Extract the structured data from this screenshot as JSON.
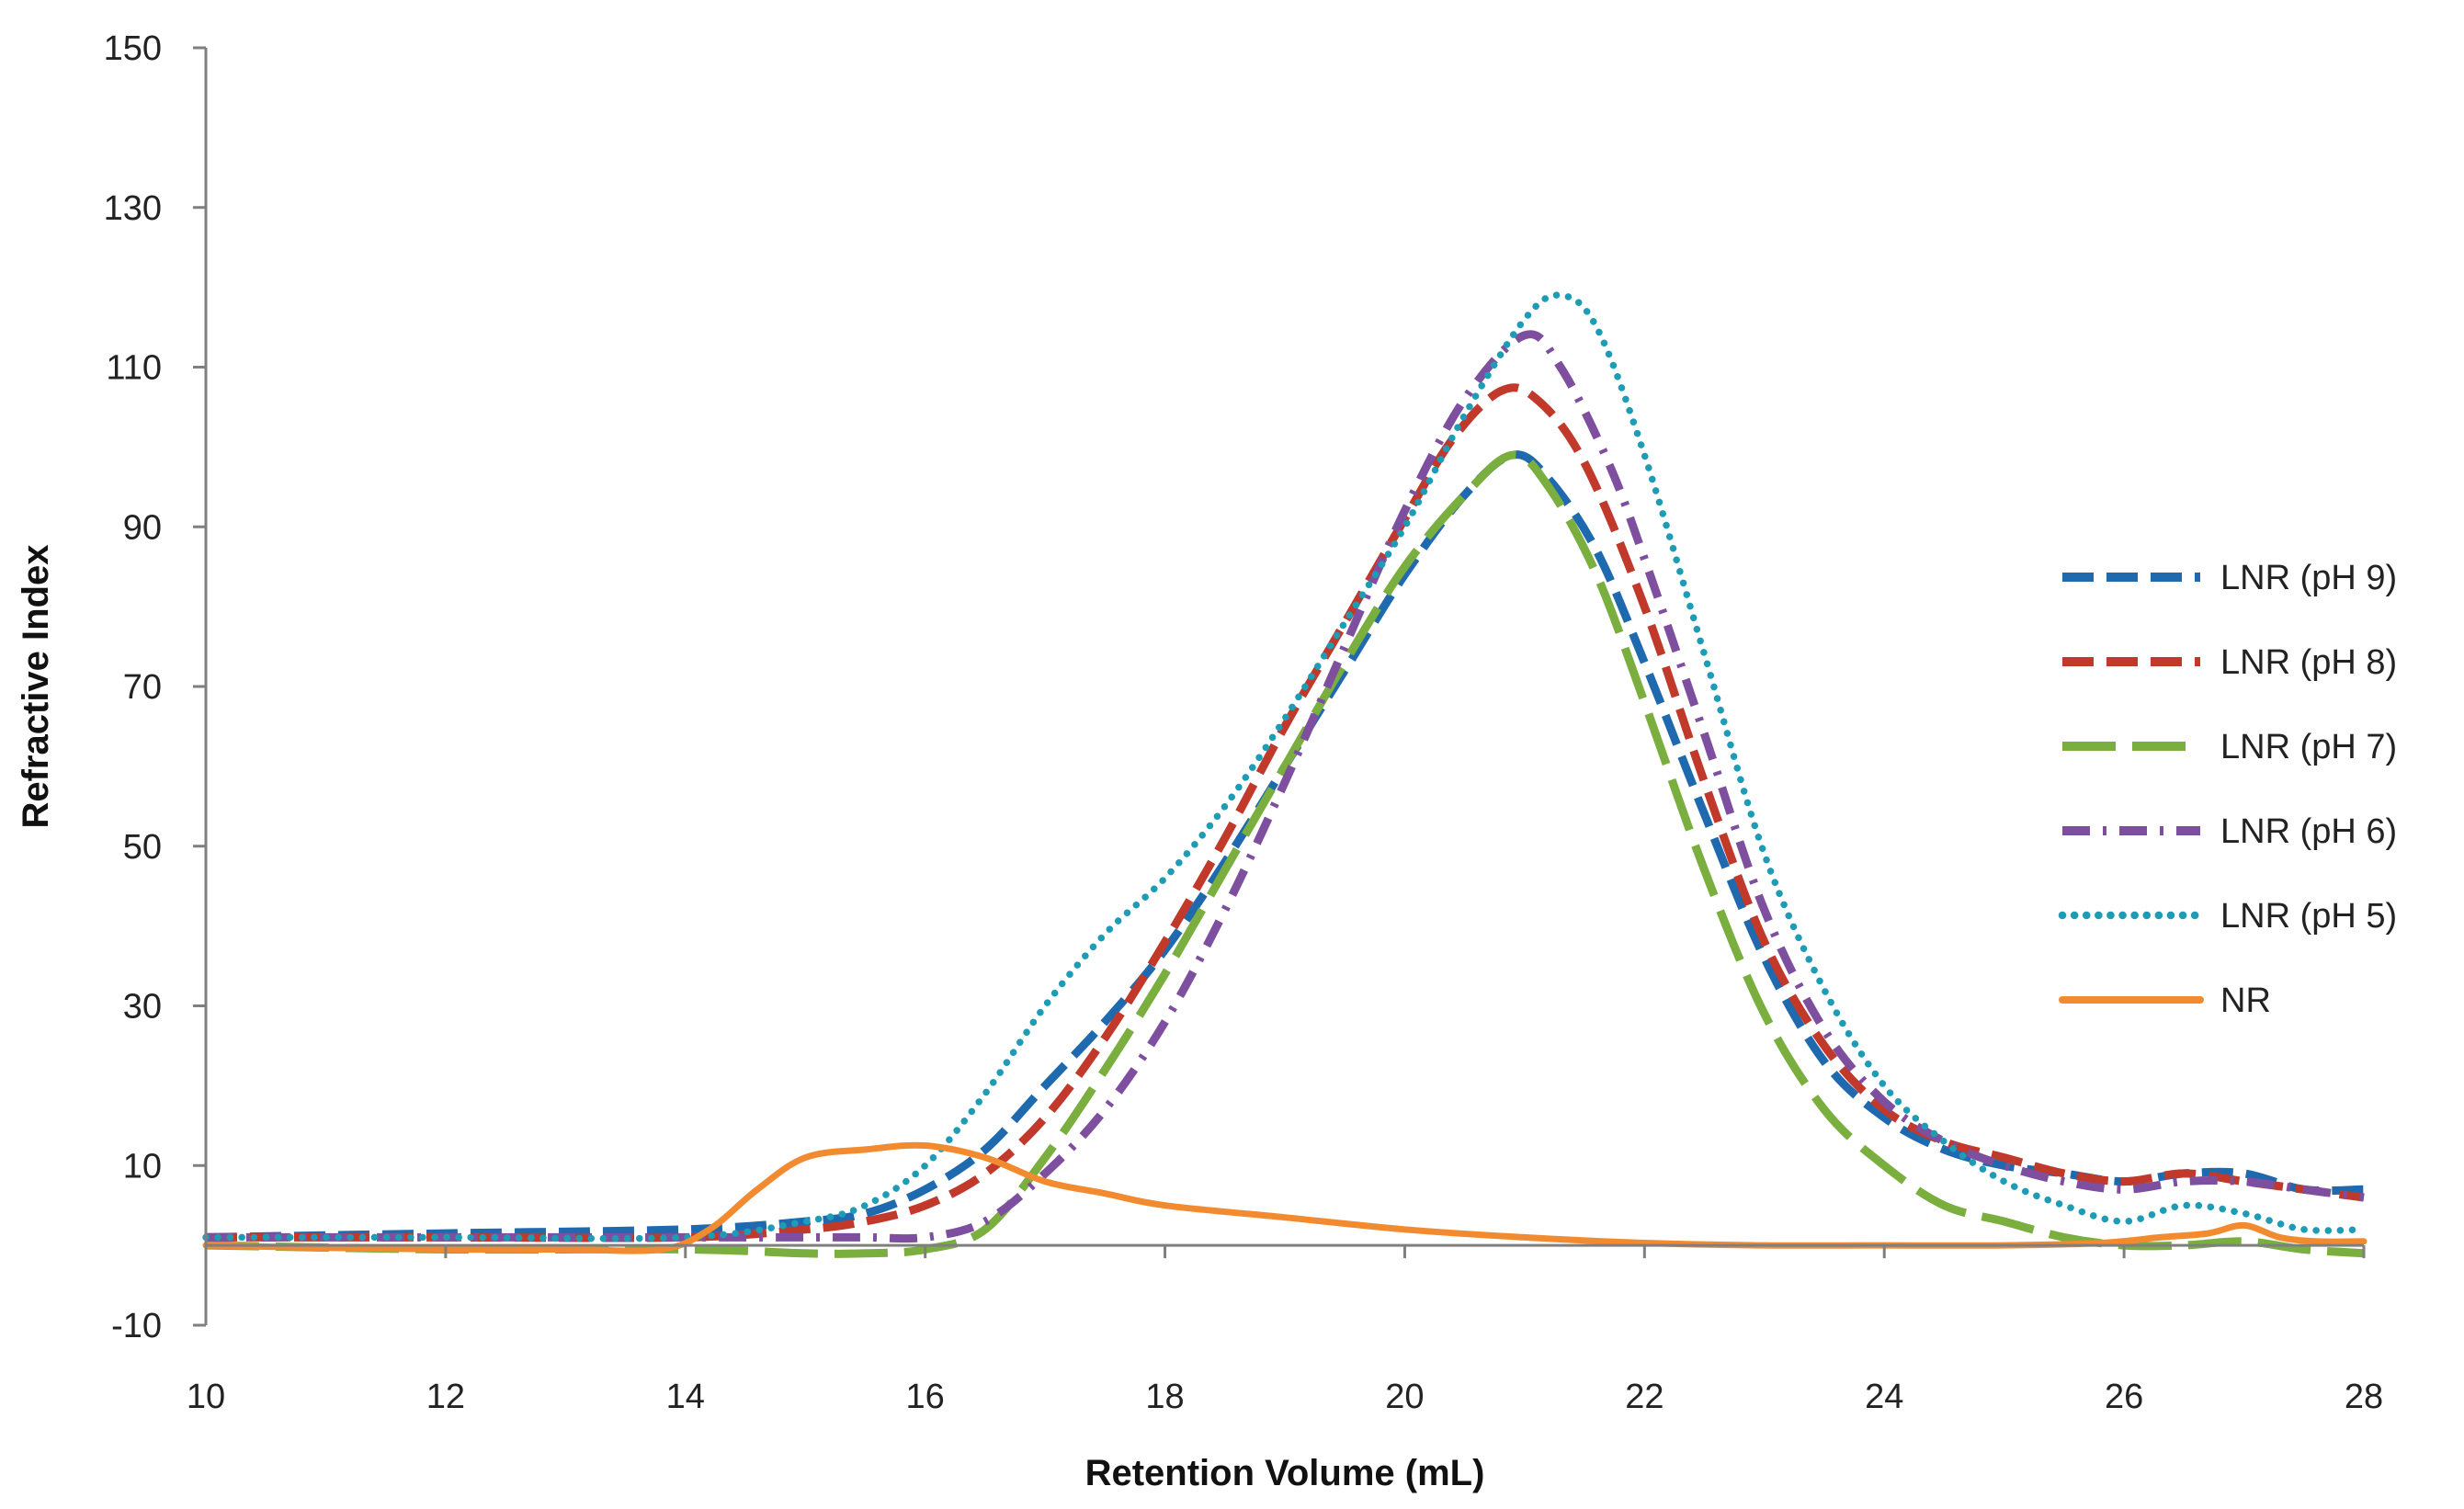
{
  "chart_data": {
    "type": "line",
    "title": "",
    "xlabel": "Retention Volume (mL)",
    "ylabel": "Refractive Index",
    "xlim": [
      10,
      28
    ],
    "ylim": [
      -10,
      150
    ],
    "xticks": [
      10,
      12,
      14,
      16,
      18,
      20,
      22,
      24,
      26,
      28
    ],
    "yticks": [
      -10,
      10,
      30,
      50,
      70,
      90,
      110,
      130,
      150
    ],
    "xtick_labels": [
      "10",
      "12",
      "14",
      "16",
      "18",
      "20",
      "22",
      "24",
      "26",
      "28"
    ],
    "ytick_labels": [
      "-10",
      "10",
      "30",
      "50",
      "70",
      "90",
      "110",
      "130",
      "150"
    ],
    "grid": false,
    "legend_position": "right",
    "series": [
      {
        "name": "LNR (pH 9)",
        "color": "#1F6AAE",
        "style": "dash",
        "x": [
          10,
          12,
          14,
          15,
          15.5,
          16,
          16.5,
          17,
          17.5,
          18,
          18.5,
          19,
          19.5,
          20,
          20.5,
          20.9,
          21.2,
          21.6,
          22,
          22.5,
          23,
          23.5,
          24,
          24.5,
          25,
          25.5,
          26,
          26.5,
          27,
          27.5,
          28
        ],
        "values": [
          1,
          1.5,
          2,
          3,
          4,
          7,
          12,
          20,
          28,
          37,
          48,
          60,
          72,
          84,
          94,
          99,
          96,
          87,
          73,
          54,
          36,
          23,
          16,
          12,
          10,
          9,
          8,
          9,
          9,
          7,
          7
        ]
      },
      {
        "name": "LNR (pH 8)",
        "color": "#C0392B",
        "style": "dash",
        "x": [
          10,
          12,
          14,
          15,
          15.5,
          16,
          16.5,
          17,
          17.5,
          18,
          18.5,
          19,
          19.5,
          20,
          20.4,
          20.8,
          21.1,
          21.5,
          22,
          22.5,
          23,
          23.5,
          24,
          24.5,
          25,
          25.5,
          26,
          26.5,
          27,
          27.5,
          28
        ],
        "values": [
          1,
          1,
          1,
          2,
          3,
          5,
          9,
          16,
          26,
          38,
          51,
          65,
          78,
          91,
          101,
          107,
          106,
          98,
          80,
          58,
          38,
          25,
          17,
          13,
          11,
          9,
          8,
          9,
          8,
          7,
          6
        ]
      },
      {
        "name": "LNR (pH 7)",
        "color": "#7AAE3E",
        "style": "longdash",
        "x": [
          10,
          12,
          14,
          15,
          15.5,
          16,
          16.5,
          17,
          17.5,
          18,
          18.5,
          19,
          19.5,
          20,
          20.5,
          20.9,
          21.2,
          21.6,
          22,
          22.5,
          23,
          23.5,
          24,
          24.5,
          25,
          25.5,
          26,
          26.5,
          27,
          27.5,
          28
        ],
        "values": [
          0,
          -0.5,
          -0.5,
          -1,
          -1,
          -0.5,
          2,
          11,
          22,
          34,
          47,
          60,
          73,
          85,
          94,
          99,
          95,
          84,
          68,
          47,
          29,
          17,
          10,
          5,
          3,
          1,
          0,
          0,
          0.5,
          -0.5,
          -1
        ]
      },
      {
        "name": "LNR (pH 6)",
        "color": "#7E4F9E",
        "style": "dashdot",
        "x": [
          10,
          12,
          14,
          15,
          15.5,
          16,
          16.5,
          17,
          17.5,
          18,
          18.5,
          19,
          19.5,
          20,
          20.5,
          21,
          21.3,
          21.7,
          22,
          22.5,
          23,
          23.5,
          24,
          24.5,
          25,
          25.5,
          26,
          26.5,
          27,
          27.5,
          28
        ],
        "values": [
          1,
          1,
          1,
          1,
          1,
          1,
          3,
          9,
          17,
          28,
          42,
          58,
          75,
          92,
          106,
          114,
          110,
          98,
          86,
          64,
          42,
          27,
          18,
          13,
          10,
          8,
          7,
          8,
          8,
          7,
          6
        ]
      },
      {
        "name": "LNR (pH 5)",
        "color": "#1E9CB6",
        "style": "dot",
        "x": [
          10,
          12,
          14,
          15,
          15.5,
          16,
          16.5,
          17,
          17.5,
          18,
          18.5,
          19,
          19.5,
          20,
          20.5,
          21,
          21.3,
          21.6,
          22,
          22.5,
          23,
          23.5,
          24,
          24.5,
          25,
          25.5,
          26,
          26.5,
          27,
          27.5,
          28
        ],
        "values": [
          1,
          1,
          1,
          3,
          5,
          10,
          19,
          30,
          39,
          46,
          55,
          66,
          78,
          90,
          104,
          116,
          119,
          115,
          99,
          74,
          49,
          32,
          20,
          13,
          8,
          5,
          3,
          5,
          4,
          2,
          2
        ]
      },
      {
        "name": "NR",
        "color": "#F28B30",
        "style": "solid",
        "x": [
          10,
          11,
          12,
          13,
          13.8,
          14.2,
          14.6,
          15,
          15.5,
          16,
          16.5,
          17,
          17.5,
          18,
          19,
          20,
          21,
          22,
          23,
          24,
          25,
          25.8,
          26.3,
          26.7,
          27,
          27.3,
          27.6,
          28
        ],
        "values": [
          0,
          -0.3,
          -0.5,
          -0.5,
          -0.5,
          2,
          7,
          11,
          12,
          12.5,
          11,
          8,
          6.5,
          5,
          3.5,
          2,
          1,
          0.3,
          0,
          0,
          0,
          0.3,
          1,
          1.5,
          2.5,
          1,
          0.5,
          0.5
        ]
      }
    ]
  }
}
